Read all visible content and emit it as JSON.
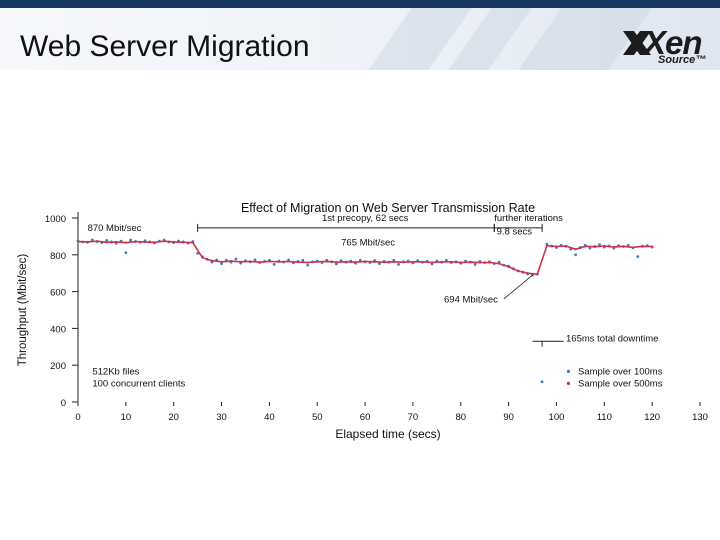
{
  "slide": {
    "title": "Web Server Migration",
    "logo": {
      "word": "Xen",
      "sub": "Source™"
    },
    "header_color": "#17375e"
  },
  "chart_data": {
    "type": "scatter",
    "title": "Effect of Migration on Web Server Transmission Rate",
    "xlabel": "Elapsed time (secs)",
    "ylabel": "Throughput (Mbit/sec)",
    "xlim": [
      0,
      130
    ],
    "ylim": [
      0,
      1000
    ],
    "xticks": [
      0,
      10,
      20,
      30,
      40,
      50,
      60,
      70,
      80,
      90,
      100,
      110,
      120,
      130
    ],
    "yticks": [
      0,
      200,
      400,
      600,
      800,
      1000
    ],
    "series": [
      {
        "name": "Sample over 100ms",
        "color": "#3a7fc0",
        "points": [
          [
            0,
            875
          ],
          [
            1,
            870
          ],
          [
            2,
            868
          ],
          [
            3,
            880
          ],
          [
            4,
            872
          ],
          [
            5,
            866
          ],
          [
            6,
            878
          ],
          [
            7,
            870
          ],
          [
            8,
            862
          ],
          [
            9,
            874
          ],
          [
            10,
            812
          ],
          [
            11,
            880
          ],
          [
            12,
            872
          ],
          [
            13,
            868
          ],
          [
            14,
            876
          ],
          [
            15,
            870
          ],
          [
            16,
            864
          ],
          [
            17,
            874
          ],
          [
            18,
            880
          ],
          [
            19,
            870
          ],
          [
            20,
            866
          ],
          [
            21,
            875
          ],
          [
            22,
            870
          ],
          [
            23,
            864
          ],
          [
            24,
            872
          ],
          [
            25,
            808
          ],
          [
            26,
            790
          ],
          [
            27,
            775
          ],
          [
            28,
            760
          ],
          [
            29,
            772
          ],
          [
            30,
            752
          ],
          [
            31,
            770
          ],
          [
            32,
            760
          ],
          [
            33,
            778
          ],
          [
            34,
            755
          ],
          [
            35,
            768
          ],
          [
            36,
            762
          ],
          [
            37,
            772
          ],
          [
            38,
            758
          ],
          [
            39,
            765
          ],
          [
            40,
            770
          ],
          [
            41,
            748
          ],
          [
            42,
            766
          ],
          [
            43,
            760
          ],
          [
            44,
            772
          ],
          [
            45,
            756
          ],
          [
            46,
            764
          ],
          [
            47,
            770
          ],
          [
            48,
            744
          ],
          [
            49,
            762
          ],
          [
            50,
            766
          ],
          [
            51,
            758
          ],
          [
            52,
            770
          ],
          [
            53,
            762
          ],
          [
            54,
            750
          ],
          [
            55,
            768
          ],
          [
            56,
            760
          ],
          [
            57,
            766
          ],
          [
            58,
            755
          ],
          [
            59,
            770
          ],
          [
            60,
            762
          ],
          [
            61,
            758
          ],
          [
            62,
            768
          ],
          [
            63,
            752
          ],
          [
            64,
            764
          ],
          [
            65,
            760
          ],
          [
            66,
            770
          ],
          [
            67,
            748
          ],
          [
            68,
            762
          ],
          [
            69,
            766
          ],
          [
            70,
            756
          ],
          [
            71,
            768
          ],
          [
            72,
            760
          ],
          [
            73,
            764
          ],
          [
            74,
            750
          ],
          [
            75,
            766
          ],
          [
            76,
            760
          ],
          [
            77,
            770
          ],
          [
            78,
            758
          ],
          [
            79,
            762
          ],
          [
            80,
            754
          ],
          [
            81,
            766
          ],
          [
            82,
            760
          ],
          [
            83,
            748
          ],
          [
            84,
            764
          ],
          [
            85,
            758
          ],
          [
            86,
            762
          ],
          [
            87,
            752
          ],
          [
            88,
            760
          ],
          [
            89,
            744
          ],
          [
            90,
            738
          ],
          [
            91,
            725
          ],
          [
            92,
            712
          ],
          [
            93,
            705
          ],
          [
            94,
            696
          ],
          [
            95,
            690
          ],
          [
            96,
            695
          ],
          [
            97,
            110
          ],
          [
            98,
            858
          ],
          [
            99,
            848
          ],
          [
            100,
            840
          ],
          [
            101,
            852
          ],
          [
            102,
            846
          ],
          [
            103,
            830
          ],
          [
            104,
            800
          ],
          [
            105,
            840
          ],
          [
            106,
            852
          ],
          [
            107,
            836
          ],
          [
            108,
            845
          ],
          [
            109,
            855
          ],
          [
            110,
            842
          ],
          [
            111,
            848
          ],
          [
            112,
            836
          ],
          [
            113,
            850
          ],
          [
            114,
            845
          ],
          [
            115,
            852
          ],
          [
            116,
            838
          ],
          [
            117,
            790
          ],
          [
            118,
            846
          ],
          [
            119,
            850
          ],
          [
            120,
            842
          ]
        ]
      },
      {
        "name": "Sample over 500ms",
        "color": "#d0304a",
        "points": [
          [
            0,
            872
          ],
          [
            2,
            870
          ],
          [
            4,
            874
          ],
          [
            6,
            868
          ],
          [
            8,
            870
          ],
          [
            10,
            866
          ],
          [
            12,
            872
          ],
          [
            14,
            870
          ],
          [
            16,
            868
          ],
          [
            18,
            874
          ],
          [
            20,
            870
          ],
          [
            22,
            868
          ],
          [
            24,
            866
          ],
          [
            26,
            785
          ],
          [
            28,
            768
          ],
          [
            30,
            762
          ],
          [
            32,
            766
          ],
          [
            34,
            762
          ],
          [
            36,
            764
          ],
          [
            38,
            760
          ],
          [
            40,
            764
          ],
          [
            42,
            762
          ],
          [
            44,
            764
          ],
          [
            46,
            760
          ],
          [
            48,
            758
          ],
          [
            50,
            762
          ],
          [
            52,
            764
          ],
          [
            54,
            760
          ],
          [
            56,
            762
          ],
          [
            58,
            760
          ],
          [
            60,
            764
          ],
          [
            62,
            762
          ],
          [
            64,
            760
          ],
          [
            66,
            762
          ],
          [
            68,
            760
          ],
          [
            70,
            762
          ],
          [
            72,
            762
          ],
          [
            74,
            758
          ],
          [
            76,
            762
          ],
          [
            78,
            762
          ],
          [
            80,
            758
          ],
          [
            82,
            760
          ],
          [
            84,
            758
          ],
          [
            86,
            758
          ],
          [
            88,
            752
          ],
          [
            90,
            735
          ],
          [
            92,
            712
          ],
          [
            94,
            700
          ],
          [
            96,
            694
          ],
          [
            98,
            850
          ],
          [
            100,
            845
          ],
          [
            102,
            848
          ],
          [
            104,
            830
          ],
          [
            106,
            846
          ],
          [
            108,
            844
          ],
          [
            110,
            848
          ],
          [
            112,
            842
          ],
          [
            114,
            846
          ],
          [
            116,
            840
          ],
          [
            118,
            846
          ],
          [
            120,
            845
          ]
        ]
      }
    ],
    "annotations": [
      {
        "text": "870 Mbit/sec",
        "x": 2,
        "y": 930
      },
      {
        "text": "1st precopy, 62 secs",
        "x": 51,
        "y": 985
      },
      {
        "text": "further iterations",
        "x": 87,
        "y": 985
      },
      {
        "text": "9.8 secs",
        "x": 87.5,
        "y": 910
      },
      {
        "text": "765 Mbit/sec",
        "x": 55,
        "y": 850
      },
      {
        "text": "694 Mbit/sec",
        "x": 76.5,
        "y": 540
      },
      {
        "text": "165ms total downtime",
        "x": 102,
        "y": 328
      },
      {
        "text": "512Kb files",
        "x": 3,
        "y": 150
      },
      {
        "text": "100 concurrent clients",
        "x": 3,
        "y": 85
      }
    ],
    "spans": [
      {
        "label": "1st precopy, 62 secs",
        "from": 25,
        "to": 87
      },
      {
        "label": "further iterations",
        "from": 87,
        "to": 97
      }
    ],
    "legend": {
      "placement": "bottom-right",
      "items": [
        "Sample over 100ms",
        "Sample over 500ms"
      ]
    }
  }
}
